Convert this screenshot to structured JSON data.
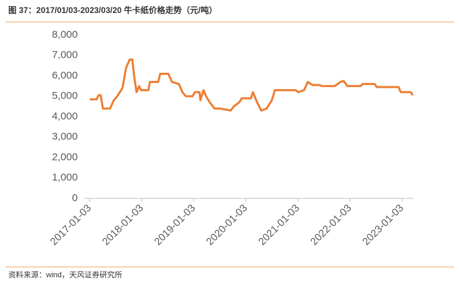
{
  "chart_data": {
    "type": "line",
    "title": "图 37：2017/01/03-2023/03/20 牛卡纸价格走势（元/吨）",
    "source": "资料来源：wind，天风证券研究所",
    "x": [
      "2017-01-03",
      "2017-02-20",
      "2017-03-05",
      "2017-03-20",
      "2017-04-05",
      "2017-05-25",
      "2017-06-20",
      "2017-07-15",
      "2017-08-20",
      "2017-09-15",
      "2017-10-10",
      "2017-10-28",
      "2017-11-12",
      "2017-11-27",
      "2017-12-15",
      "2017-12-28",
      "2018-02-18",
      "2018-03-01",
      "2018-04-28",
      "2018-05-12",
      "2018-07-08",
      "2018-08-03",
      "2018-09-20",
      "2018-10-15",
      "2018-11-08",
      "2018-12-25",
      "2019-01-10",
      "2019-02-12",
      "2019-02-18",
      "2019-03-12",
      "2019-03-30",
      "2019-04-25",
      "2019-05-28",
      "2019-07-05",
      "2019-09-18",
      "2019-10-10",
      "2019-11-18",
      "2019-12-05",
      "2020-02-08",
      "2020-02-22",
      "2020-03-22",
      "2020-04-20",
      "2020-05-28",
      "2020-07-03",
      "2020-07-25",
      "2020-12-18",
      "2021-01-03",
      "2021-02-15",
      "2021-03-12",
      "2021-04-15",
      "2021-06-03",
      "2021-06-18",
      "2021-09-18",
      "2021-10-28",
      "2021-11-20",
      "2021-12-15",
      "2022-03-18",
      "2022-04-03",
      "2022-06-25",
      "2022-07-10",
      "2022-12-10",
      "2022-12-25",
      "2023-03-05",
      "2023-03-20"
    ],
    "series": [
      {
        "color": "#ed7d31",
        "values": [
          4850,
          4850,
          5050,
          5050,
          4400,
          4400,
          4800,
          5000,
          5400,
          6400,
          6800,
          6800,
          5900,
          5200,
          5500,
          5300,
          5300,
          5700,
          5700,
          6100,
          6100,
          5700,
          5600,
          5200,
          5000,
          5000,
          5200,
          5200,
          4800,
          5300,
          5000,
          4700,
          4400,
          4400,
          4300,
          4500,
          4700,
          4900,
          4900,
          5200,
          4700,
          4300,
          4400,
          4800,
          5300,
          5300,
          5200,
          5300,
          5700,
          5550,
          5550,
          5500,
          5500,
          5700,
          5750,
          5500,
          5500,
          5600,
          5600,
          5450,
          5450,
          5200,
          5200,
          5050
        ]
      }
    ],
    "xlim": [
      "2016-11-23",
      "2023-03-25"
    ],
    "xticks": [
      "2017-01-03",
      "2018-01-03",
      "2019-01-03",
      "2020-01-03",
      "2021-01-03",
      "2022-01-03",
      "2023-01-03"
    ],
    "ylim": [
      0,
      8000
    ],
    "yticks": [
      0,
      {
        "value": 1000,
        "label": "1,000"
      },
      {
        "value": 2000,
        "label": "2,000"
      },
      {
        "value": 3000,
        "label": "3,000"
      },
      {
        "value": 4000,
        "label": "4,000"
      },
      {
        "value": 5000,
        "label": "5,000"
      },
      {
        "value": 6000,
        "label": "6,000"
      },
      {
        "value": 7000,
        "label": "7,000"
      },
      {
        "value": 8000,
        "label": "8,000"
      }
    ],
    "grid": false
  }
}
